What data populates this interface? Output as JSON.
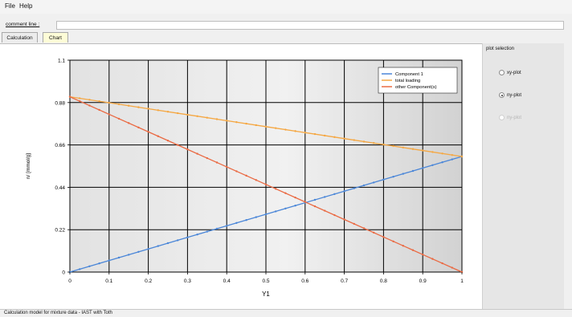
{
  "menu": {
    "file": "File",
    "help": "Help"
  },
  "comment": {
    "label": "comment line :",
    "value": ""
  },
  "tabs": [
    {
      "label": "Calculation"
    },
    {
      "label": "Chart"
    }
  ],
  "plot_selection": {
    "title": "plot selection",
    "options": [
      {
        "label": "xy-plot",
        "checked": false,
        "enabled": true
      },
      {
        "label": "ny-plot",
        "checked": true,
        "enabled": true
      },
      {
        "label": "ny-plot",
        "checked": false,
        "enabled": false
      }
    ]
  },
  "status": {
    "text": "Calculation model for mixture data - IAST with Toth"
  },
  "colors": {
    "component1": "#4a86d8",
    "total": "#f5a742",
    "other": "#ea6a43"
  },
  "chart_data": {
    "type": "line",
    "xlabel": "Y1",
    "ylabel": "n/ [mmol/g]",
    "xlim": [
      0,
      1
    ],
    "ylim": [
      0,
      1.1
    ],
    "x_ticks": [
      "0",
      "0.1",
      "0.2",
      "0.3",
      "0.4",
      "0.5",
      "0.6",
      "0.7",
      "0.8",
      "0.9",
      "1"
    ],
    "y_ticks": [
      "0",
      "0.22",
      "0.44",
      "0.66",
      "0.88",
      "1.1"
    ],
    "x": [
      0,
      0.1,
      0.2,
      0.3,
      0.4,
      0.5,
      0.6,
      0.7,
      0.8,
      0.9,
      1
    ],
    "series": [
      {
        "name": "Component 1",
        "values": [
          0,
          0.06,
          0.12,
          0.18,
          0.24,
          0.3,
          0.36,
          0.42,
          0.48,
          0.54,
          0.6
        ]
      },
      {
        "name": "total loading",
        "values": [
          0.91,
          0.879,
          0.848,
          0.817,
          0.786,
          0.755,
          0.724,
          0.693,
          0.662,
          0.631,
          0.6
        ]
      },
      {
        "name": "other Component(s)",
        "values": [
          0.91,
          0.819,
          0.728,
          0.637,
          0.546,
          0.455,
          0.364,
          0.273,
          0.182,
          0.091,
          0
        ]
      }
    ],
    "grid": true,
    "legend": "top-right"
  }
}
